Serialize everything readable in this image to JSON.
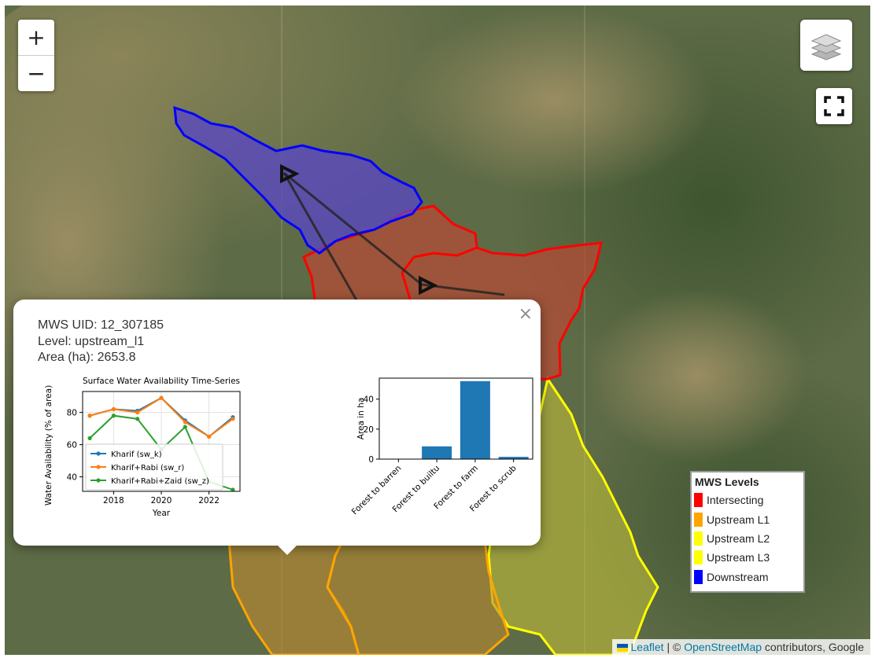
{
  "map": {
    "zoom_in": "+",
    "zoom_out": "−",
    "layers_icon": "layers-icon",
    "fullscreen_icon": "fullscreen-icon"
  },
  "popup": {
    "close": "×",
    "uid": "MWS UID: 12_307185",
    "level": "Level: upstream_l1",
    "area": "Area (ha): 2653.8"
  },
  "line_chart": {
    "type": "line",
    "title": "Surface Water Availability Time-Series",
    "xlabel": "Year",
    "ylabel": "Water Availability (% of area)",
    "xlim": [
      2016.7,
      2023.3
    ],
    "ylim": [
      31,
      93
    ],
    "xticks": [
      2018,
      2020,
      2022
    ],
    "yticks": [
      40,
      60,
      80
    ],
    "grid": true,
    "legend_position": "lower-left",
    "x": [
      2017,
      2018,
      2019,
      2020,
      2021,
      2022,
      2023
    ],
    "series": [
      {
        "name": "Kharif (sw_k)",
        "color": "#1f77b4",
        "values": [
          78,
          82,
          81,
          89,
          75,
          65,
          77
        ]
      },
      {
        "name": "Kharif+Rabi (sw_r)",
        "color": "#ff7f0e",
        "values": [
          78,
          82,
          80,
          89,
          74,
          65,
          76
        ]
      },
      {
        "name": "Kharif+Rabi+Zaid (sw_z)",
        "color": "#2ca02c",
        "values": [
          64,
          78,
          76,
          57,
          71,
          37,
          32
        ]
      }
    ]
  },
  "bar_chart": {
    "type": "bar",
    "ylabel": "Area in ha",
    "ylim": [
      0,
      54
    ],
    "yticks": [
      0,
      20,
      40
    ],
    "color": "#1f77b4",
    "categories": [
      "Forest to barren",
      "Forest to builtu",
      "Forest to farm",
      "Forest to scrub"
    ],
    "values": [
      0,
      8.5,
      52,
      1.5
    ]
  },
  "legend": {
    "title": "MWS Levels",
    "items": [
      {
        "label": "Intersecting",
        "color": "#ff0000"
      },
      {
        "label": "Upstream L1",
        "color": "#ffa500"
      },
      {
        "label": "Upstream L2",
        "color": "#ffff00"
      },
      {
        "label": "Upstream L3",
        "color": "#ffff00"
      },
      {
        "label": "Downstream",
        "color": "#0000ff"
      }
    ]
  },
  "attribution": {
    "leaflet": "Leaflet",
    "sep": " | © ",
    "osm": "OpenStreetMap",
    "rest": " contributors, Google"
  }
}
